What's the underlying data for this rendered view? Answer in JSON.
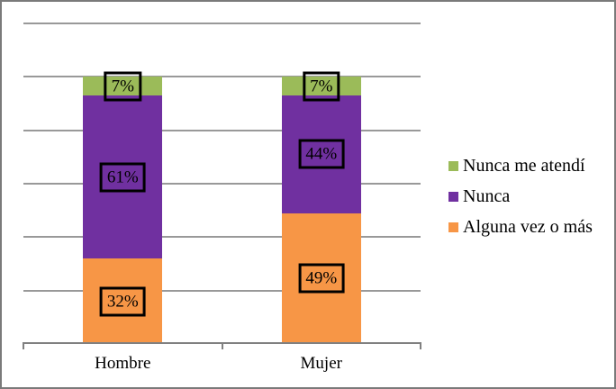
{
  "chart_data": {
    "type": "bar",
    "stacked": true,
    "title": "",
    "xlabel": "",
    "ylabel": "",
    "categories": [
      "Hombre",
      "Mujer"
    ],
    "stack_order": "bottom_to_top",
    "series": [
      {
        "name": "Alguna vez o más",
        "color": "#F79646",
        "values": [
          32,
          49
        ],
        "data_labels": [
          "32%",
          "49%"
        ]
      },
      {
        "name": "Nunca",
        "color": "#7030A0",
        "values": [
          61,
          44
        ],
        "data_labels": [
          "61%",
          "44%"
        ]
      },
      {
        "name": "Nunca me atendí",
        "color": "#9BBB59",
        "values": [
          7,
          7
        ],
        "data_labels": [
          "7%",
          "7%"
        ]
      }
    ],
    "ylim": [
      0,
      120
    ],
    "y_major_unit": 20,
    "y_axis_labels_visible": false,
    "grid": true,
    "data_label_style": "boxed",
    "legend": {
      "position": "right",
      "items": [
        {
          "label": "Nunca me atendí",
          "color": "#9BBB59"
        },
        {
          "label": "Nunca",
          "color": "#7030A0"
        },
        {
          "label": "Alguna vez o más",
          "color": "#F79646"
        }
      ]
    }
  },
  "colors": {
    "background": "#ffffff",
    "chart_border": "#7a7a7a",
    "gridline": "#999999",
    "axis": "#808080",
    "data_label_text": "#000000",
    "data_label_box_border": "#000000"
  }
}
